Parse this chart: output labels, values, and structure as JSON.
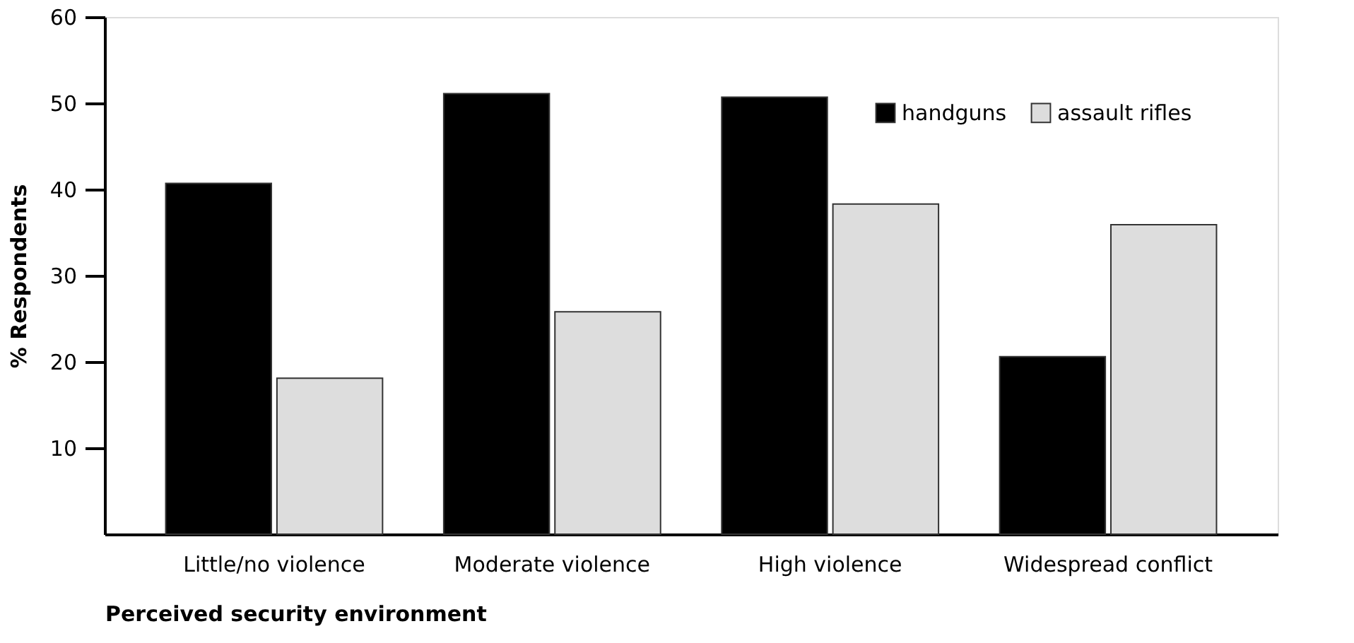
{
  "chart_data": {
    "type": "bar",
    "xlabel": "Perceived security environment",
    "ylabel": "% Respondents",
    "categories": [
      "Little/no violence",
      "Moderate violence",
      "High violence",
      "Widespread conflict"
    ],
    "series": [
      {
        "name": "handguns",
        "color": "#000000",
        "values": [
          40.7,
          51.1,
          50.7,
          20.6
        ]
      },
      {
        "name": "assault rifles",
        "color": "#dddddd",
        "values": [
          18.1,
          25.8,
          38.3,
          35.9
        ]
      }
    ],
    "ylim": [
      0,
      60
    ],
    "yticks": [
      10,
      20,
      30,
      40,
      50,
      60
    ],
    "grid": false,
    "legend": "top right"
  }
}
